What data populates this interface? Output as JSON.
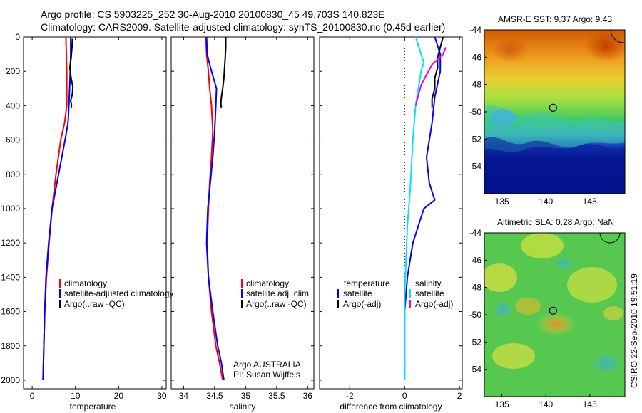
{
  "figure": {
    "title_line1": "Argo profile: CS 5903225_252 30-Aug-2010 20100830_45 49.703S 140.823E",
    "title_line2": "Climatology: CARS2009. Satellite-adjusted climatology: synTS_20100830.nc (0.45d earlier)",
    "footer_credit": "CSIRO 22-Sep-2010 19:51:19",
    "argo_label_line1": "Argo AUSTRALIA",
    "argo_label_line2": "PI: Susan Wijffels"
  },
  "colors": {
    "climatology": "#ff0000",
    "satellite": "#0000ff",
    "argo": "#000000",
    "satellite_salinity": "#00e5ee",
    "argo_salinity_adj": "#ee00ee"
  },
  "chart_data": [
    {
      "type": "line",
      "xlabel": "temperature",
      "ylabel": "",
      "xlim": [
        -2,
        31
      ],
      "ylim": [
        2050,
        0
      ],
      "xticks": [
        0,
        10,
        20,
        30
      ],
      "yticks": [
        0,
        200,
        400,
        600,
        800,
        1000,
        1200,
        1400,
        1600,
        1800,
        2000
      ],
      "legend": [
        "climatology",
        "satellite-adjusted climatology",
        "Argo(..raw -QC)"
      ],
      "series": [
        {
          "name": "climatology",
          "color_key": "climatology",
          "x": [
            7.8,
            7.9,
            8.0,
            8.0,
            7.5,
            6.6,
            5.5,
            4.6,
            3.9,
            3.3,
            2.9,
            2.7,
            2.6,
            2.5
          ],
          "y": [
            0,
            100,
            200,
            400,
            500,
            600,
            800,
            1000,
            1200,
            1400,
            1600,
            1800,
            1900,
            2000
          ]
        },
        {
          "name": "satellite-adjusted climatology",
          "color_key": "satellite",
          "x": [
            8.9,
            8.9,
            8.8,
            8.5,
            8.3,
            7.6,
            6.1,
            4.6,
            3.8,
            3.2,
            2.9,
            2.7,
            2.6,
            2.5
          ],
          "y": [
            0,
            100,
            200,
            400,
            500,
            600,
            800,
            1000,
            1200,
            1400,
            1600,
            1800,
            1900,
            2000
          ]
        },
        {
          "name": "Argo(..raw -QC)",
          "color_key": "argo",
          "x": [
            9.3,
            9.2,
            9.0,
            8.7,
            9.0,
            9.4,
            9.3,
            8.9,
            9.1,
            9.0
          ],
          "y": [
            10,
            60,
            120,
            180,
            240,
            290,
            330,
            370,
            400,
            410
          ]
        }
      ]
    },
    {
      "type": "line",
      "xlabel": "salinity",
      "xlim": [
        33.8,
        36.1
      ],
      "ylim": [
        2050,
        0
      ],
      "xticks": [
        34,
        34.5,
        35,
        35.5,
        36
      ],
      "legend": [
        "climatology",
        "satellite adj. clim.",
        "Argo(..raw -QC)"
      ],
      "series": [
        {
          "name": "climatology",
          "color_key": "climatology",
          "x": [
            34.36,
            34.37,
            34.4,
            34.42,
            34.45,
            34.47,
            34.45,
            34.42,
            34.4,
            34.38,
            34.4,
            34.45,
            34.52,
            34.58,
            34.63
          ],
          "y": [
            0,
            100,
            200,
            300,
            400,
            550,
            700,
            850,
            1000,
            1200,
            1400,
            1600,
            1800,
            1900,
            2000
          ]
        },
        {
          "name": "satellite adj. clim.",
          "color_key": "satellite",
          "x": [
            34.37,
            34.38,
            34.45,
            34.53,
            34.52,
            34.5,
            34.47,
            34.43,
            34.39,
            34.37,
            34.4,
            34.47,
            34.55,
            34.61,
            34.65
          ],
          "y": [
            0,
            100,
            200,
            300,
            400,
            550,
            700,
            850,
            1000,
            1200,
            1400,
            1600,
            1800,
            1900,
            2000
          ]
        },
        {
          "name": "Argo(..raw -QC)",
          "color_key": "argo",
          "x": [
            34.68,
            34.68,
            34.67,
            34.66,
            34.65,
            34.63,
            34.61,
            34.6,
            34.61
          ],
          "y": [
            0,
            60,
            120,
            180,
            240,
            300,
            350,
            390,
            410
          ]
        }
      ]
    },
    {
      "type": "line",
      "xlabel": "difference from climatology",
      "xlim": [
        -3.1,
        2.1
      ],
      "ylim": [
        2050,
        0
      ],
      "xticks": [
        -2,
        0,
        2
      ],
      "legend": [
        "temperature",
        "satellite",
        "Argo(-adj)",
        "salinity",
        "satellite",
        "Argo(-adj)"
      ],
      "series": [
        {
          "name": "temperature satellite",
          "color_key": "satellite",
          "x": [
            1.1,
            1.2,
            1.3,
            1.3,
            1.1,
            1.0,
            0.8,
            0.9,
            1.1,
            0.7,
            0.5,
            0.3,
            0.2,
            0.1,
            0.05,
            0.0,
            0.0,
            0.0
          ],
          "y": [
            0,
            50,
            100,
            200,
            350,
            500,
            700,
            850,
            950,
            1000,
            1100,
            1200,
            1300,
            1400,
            1500,
            1600,
            1800,
            2000
          ]
        },
        {
          "name": "temperature Argo(-adj)",
          "color_key": "argo",
          "x": [
            1.4,
            1.3,
            1.2,
            1.2,
            1.1,
            1.1,
            1.0,
            1.0
          ],
          "y": [
            0,
            60,
            120,
            180,
            240,
            300,
            360,
            410
          ]
        },
        {
          "name": "salinity satellite",
          "color_key": "satellite_salinity",
          "x": [
            0.4,
            0.5,
            0.6,
            0.7,
            0.6,
            0.5,
            0.4,
            0.3,
            0.2,
            0.1,
            0.05,
            0.0,
            0.0,
            0.0
          ],
          "y": [
            0,
            50,
            100,
            150,
            200,
            300,
            400,
            600,
            900,
            1100,
            1300,
            1500,
            1800,
            2000
          ]
        },
        {
          "name": "salinity Argo(-adj)",
          "color_key": "argo_salinity_adj",
          "x": [
            1.5,
            1.4,
            1.0,
            0.8,
            0.6,
            0.5,
            0.4
          ],
          "y": [
            60,
            100,
            160,
            220,
            280,
            340,
            400
          ]
        }
      ]
    }
  ],
  "maps": [
    {
      "title": "AMSR-E SST: 9.37 Argo: 9.43",
      "xticks": [
        "135",
        "140",
        "145"
      ],
      "yticks": [
        "-44",
        "-46",
        "-48",
        "-50",
        "-52",
        "-54"
      ],
      "xlim": [
        133,
        149
      ],
      "ylim": [
        -56,
        -44
      ],
      "argo_position": {
        "lon": 140.823,
        "lat": -49.703
      }
    },
    {
      "title": "Altimetric SLA: 0.28 Argo: NaN",
      "xticks": [
        "135",
        "140",
        "145"
      ],
      "yticks": [
        "-44",
        "-46",
        "-48",
        "-50",
        "-52",
        "-54"
      ],
      "xlim": [
        133,
        149
      ],
      "ylim": [
        -56,
        -44
      ],
      "argo_position": {
        "lon": 140.823,
        "lat": -49.703
      }
    }
  ]
}
